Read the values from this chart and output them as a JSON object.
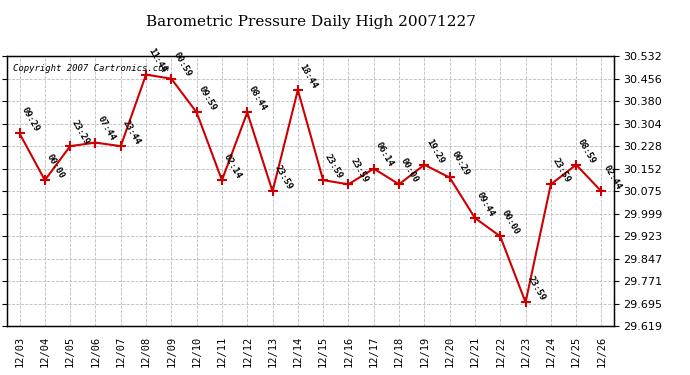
{
  "title": "Barometric Pressure Daily High 20071227",
  "copyright": "Copyright 2007 Cartronics.com",
  "dates": [
    "12/03",
    "12/04",
    "12/05",
    "12/06",
    "12/07",
    "12/08",
    "12/09",
    "12/10",
    "12/11",
    "12/12",
    "12/13",
    "12/14",
    "12/15",
    "12/16",
    "12/17",
    "12/18",
    "12/19",
    "12/20",
    "12/21",
    "12/22",
    "12/23",
    "12/24",
    "12/25",
    "12/26"
  ],
  "values": [
    30.271,
    30.113,
    30.228,
    30.24,
    30.228,
    30.47,
    30.456,
    30.342,
    30.113,
    30.342,
    30.075,
    30.418,
    30.113,
    30.099,
    30.152,
    30.099,
    30.165,
    30.122,
    29.985,
    29.923,
    29.7,
    30.099,
    30.165,
    30.075
  ],
  "times": [
    "09:29",
    "00:00",
    "23:29",
    "07:44",
    "23:44",
    "11:44",
    "00:59",
    "09:59",
    "02:14",
    "08:44",
    "23:59",
    "18:44",
    "23:59",
    "23:59",
    "06:14",
    "00:00",
    "19:29",
    "00:29",
    "09:44",
    "00:00",
    "23:59",
    "23:59",
    "08:59",
    "02:44"
  ],
  "line_color": "#cc0000",
  "marker_color": "#cc0000",
  "bg_color": "#ffffff",
  "grid_color": "#bbbbbb",
  "ylim_min": 29.619,
  "ylim_max": 30.532,
  "yticks": [
    30.532,
    30.456,
    30.38,
    30.304,
    30.228,
    30.152,
    30.075,
    29.999,
    29.923,
    29.847,
    29.771,
    29.695,
    29.619
  ]
}
